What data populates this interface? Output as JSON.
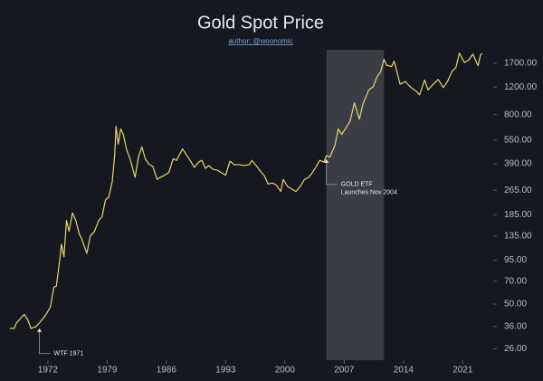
{
  "chart_data": {
    "type": "line",
    "title": "Gold Spot Price",
    "subtitle": "author: @woonomic",
    "log_scale": true,
    "grid": false,
    "color": "#e9d46c",
    "highlight": [
      2004.9,
      2011.7
    ],
    "xlim": [
      1967.2,
      2024.6
    ],
    "xticks": [
      1972,
      1979,
      1986,
      1993,
      2000,
      2007,
      2014,
      2021
    ],
    "ylim": [
      22,
      2070
    ],
    "yticks": [
      {
        "value": 1700,
        "label": "1700.00"
      },
      {
        "value": 1200,
        "label": "1200.00"
      },
      {
        "value": 800,
        "label": "800.00"
      },
      {
        "value": 550,
        "label": "550.00"
      },
      {
        "value": 390,
        "label": "390.00"
      },
      {
        "value": 265,
        "label": "265.00"
      },
      {
        "value": 185,
        "label": "185.00"
      },
      {
        "value": 135,
        "label": "135.00"
      },
      {
        "value": 95,
        "label": "95.00"
      },
      {
        "value": 70,
        "label": "70.00"
      },
      {
        "value": 50,
        "label": "50.00"
      },
      {
        "value": 36,
        "label": "36.00"
      },
      {
        "value": 26,
        "label": "26.00"
      }
    ],
    "annotations": [
      {
        "x": 1971,
        "y": 37,
        "lines": [
          "WTF 1971"
        ]
      },
      {
        "x": 2004.9,
        "y": 440,
        "lines": [
          "GOLD ETF",
          "Launches Nov 2004"
        ]
      }
    ],
    "x": [
      1967.5,
      1968.0,
      1968.3,
      1969.2,
      1969.6,
      1970.0,
      1970.6,
      1971.0,
      1971.5,
      1971.9,
      1972.3,
      1972.7,
      1973.0,
      1973.4,
      1973.6,
      1973.9,
      1974.2,
      1974.5,
      1974.9,
      1975.3,
      1975.7,
      1976.0,
      1976.6,
      1977.0,
      1977.5,
      1978.0,
      1978.4,
      1978.8,
      1979.2,
      1979.6,
      1979.9,
      1980.05,
      1980.3,
      1980.6,
      1980.9,
      1981.3,
      1981.7,
      1982.3,
      1982.7,
      1983.1,
      1983.5,
      1983.9,
      1984.4,
      1984.9,
      1985.3,
      1985.8,
      1986.3,
      1986.8,
      1987.2,
      1987.9,
      1988.3,
      1988.8,
      1989.3,
      1989.8,
      1990.2,
      1990.6,
      1991.0,
      1991.5,
      1992.0,
      1992.6,
      1993.0,
      1993.5,
      1994.0,
      1994.6,
      1995.2,
      1995.8,
      1996.1,
      1996.6,
      1997.1,
      1997.6,
      1998.0,
      1998.5,
      1999.0,
      1999.5,
      1999.8,
      2000.3,
      2000.8,
      2001.3,
      2001.8,
      2002.3,
      2002.8,
      2003.2,
      2003.7,
      2004.1,
      2004.6,
      2004.9,
      2005.3,
      2005.9,
      2006.3,
      2006.7,
      2007.2,
      2007.7,
      2008.2,
      2008.8,
      2009.2,
      2009.9,
      2010.4,
      2010.9,
      2011.3,
      2011.7,
      2012.0,
      2012.6,
      2012.9,
      2013.3,
      2013.6,
      2014.2,
      2014.9,
      2015.5,
      2015.9,
      2016.5,
      2016.9,
      2017.5,
      2018.1,
      2018.7,
      2019.2,
      2019.7,
      2020.2,
      2020.6,
      2021.2,
      2021.7,
      2022.2,
      2022.8,
      2023.1,
      2023.3
    ],
    "values": [
      35,
      35,
      38,
      43,
      40,
      35,
      36,
      38,
      41,
      44,
      48,
      64,
      65,
      95,
      120,
      100,
      170,
      145,
      190,
      170,
      140,
      130,
      105,
      135,
      145,
      170,
      180,
      230,
      240,
      300,
      450,
      675,
      520,
      650,
      600,
      480,
      420,
      320,
      430,
      500,
      420,
      390,
      375,
      310,
      320,
      330,
      345,
      420,
      410,
      485,
      450,
      410,
      370,
      400,
      410,
      365,
      380,
      360,
      355,
      340,
      330,
      405,
      385,
      385,
      380,
      385,
      410,
      380,
      350,
      325,
      290,
      295,
      285,
      260,
      310,
      280,
      270,
      260,
      280,
      310,
      320,
      340,
      375,
      410,
      400,
      440,
      430,
      510,
      650,
      600,
      660,
      730,
      950,
      750,
      930,
      1150,
      1200,
      1400,
      1500,
      1800,
      1650,
      1620,
      1750,
      1450,
      1250,
      1300,
      1190,
      1130,
      1070,
      1330,
      1150,
      1250,
      1340,
      1190,
      1300,
      1500,
      1600,
      1970,
      1720,
      1780,
      1940,
      1640,
      1920,
      1970
    ]
  }
}
